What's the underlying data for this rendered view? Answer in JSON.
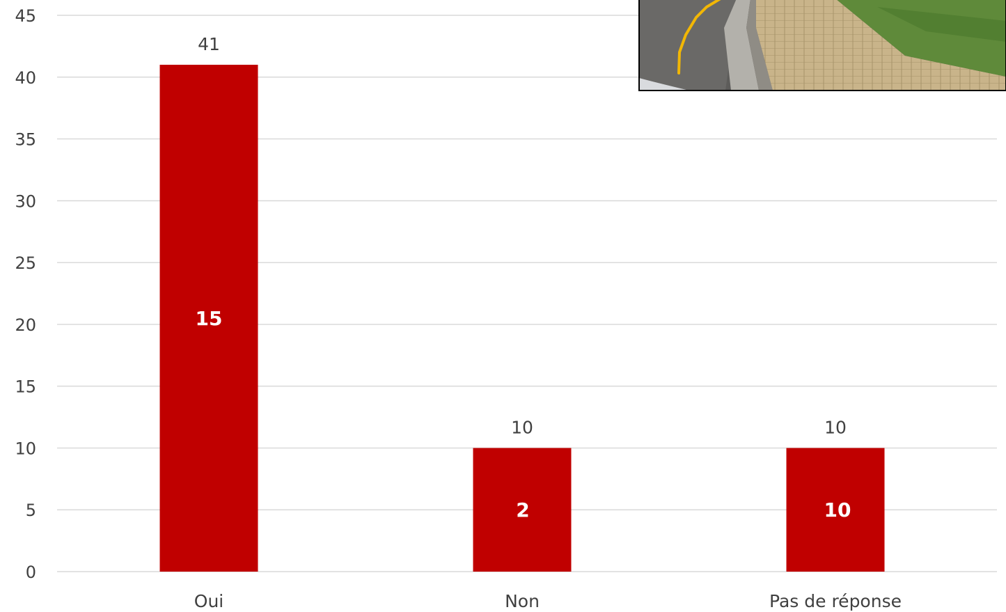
{
  "chart_data": {
    "type": "bar",
    "categories": [
      "Oui",
      "Non",
      "Pas de réponse"
    ],
    "series": [
      {
        "values": [
          41,
          10,
          10
        ],
        "color": "#c00000"
      }
    ],
    "inner_labels": [
      "15",
      "2",
      "10"
    ],
    "yticks": [
      0,
      5,
      10,
      15,
      20,
      25,
      30,
      35,
      40,
      45
    ],
    "ylim": [
      0,
      45
    ],
    "grid": true,
    "title": "",
    "xlabel": "",
    "ylabel": ""
  },
  "inset_photo": {
    "description_icon": "street-curb-photo-icon"
  }
}
